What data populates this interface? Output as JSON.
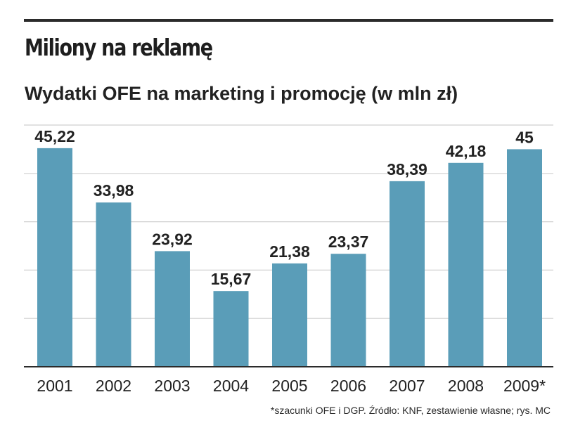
{
  "title": "Miliony na reklamę",
  "subtitle": "Wydatki OFE na marketing i promocję (w mln zł)",
  "footnote": "*szacunki OFE i DGP. Źródło: KNF, zestawienie własne;  rys. MC",
  "colors": {
    "bar": "#5a9db8",
    "gridline": "#cfcfcf",
    "axis": "#2b2b2b",
    "text": "#222222"
  },
  "chart_data": {
    "type": "bar",
    "title": "Miliony na reklamę",
    "subtitle": "Wydatki OFE na marketing i promocję (w mln zł)",
    "xlabel": "",
    "ylabel": "",
    "categories": [
      "2001",
      "2002",
      "2003",
      "2004",
      "2005",
      "2006",
      "2007",
      "2008",
      "2009*"
    ],
    "values": [
      45.22,
      33.98,
      23.92,
      15.67,
      21.38,
      23.37,
      38.39,
      42.18,
      45
    ],
    "value_labels": [
      "45,22",
      "33,98",
      "23,92",
      "15,67",
      "21,38",
      "23,37",
      "38,39",
      "42,18",
      "45"
    ],
    "ylim": [
      0,
      50
    ],
    "gridlines": [
      10,
      20,
      30,
      40,
      50
    ],
    "grid": true
  }
}
